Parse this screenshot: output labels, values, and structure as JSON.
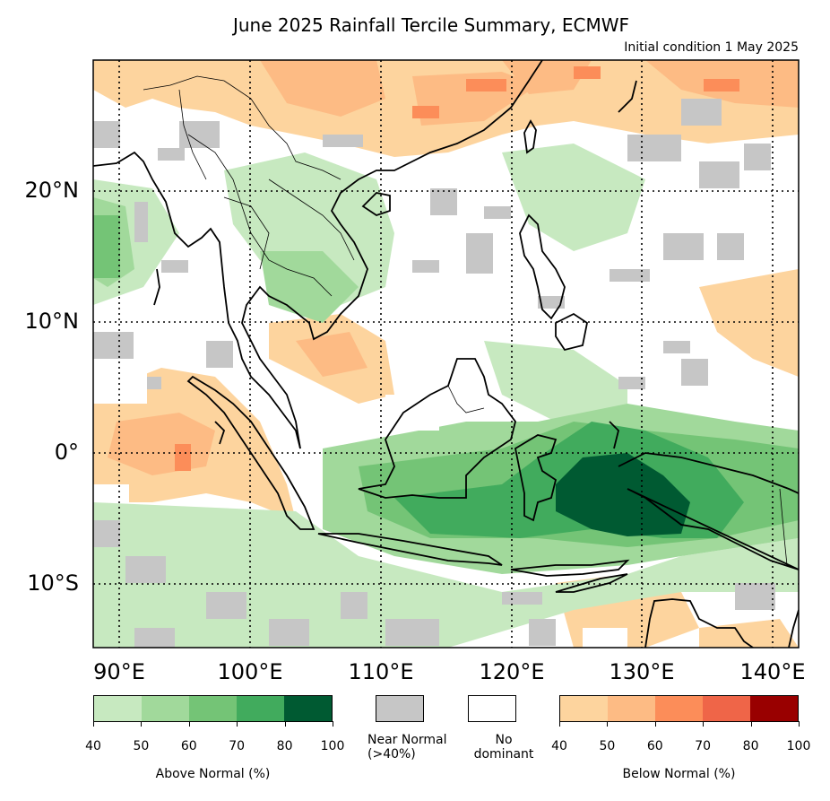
{
  "title": "June 2025 Rainfall Tercile Summary, ECMWF",
  "subtitle": "Initial condition 1 May 2025",
  "lat_labels": [
    "20°N",
    "10°N",
    "0°",
    "10°S"
  ],
  "lon_labels": [
    "90°E",
    "100°E",
    "110°E",
    "120°E",
    "130°E",
    "140°E"
  ],
  "legend": {
    "above_normal": {
      "caption": "Above Normal (%)",
      "ticks": [
        "40",
        "50",
        "60",
        "70",
        "80",
        "100"
      ],
      "colors": [
        "#c7e9c0",
        "#a1d99b",
        "#74c476",
        "#41ab5d",
        "#005a32"
      ]
    },
    "near_normal": {
      "caption_line1": "Near Normal",
      "caption_line2": "(>40%)",
      "color": "#c6c6c6"
    },
    "no_dominant": {
      "caption_line1": "No",
      "caption_line2": "dominant",
      "color": "#ffffff"
    },
    "below_normal": {
      "caption": "Below Normal (%)",
      "ticks": [
        "40",
        "50",
        "60",
        "70",
        "80",
        "100"
      ],
      "colors": [
        "#fdd49e",
        "#fdbb84",
        "#fc8d59",
        "#ef6548",
        "#990000"
      ]
    }
  },
  "map_extent": {
    "lon_min": 88,
    "lon_max": 142,
    "lat_min": -15,
    "lat_max": 30
  },
  "gridlines_lon": [
    90,
    100,
    110,
    120,
    130,
    140
  ],
  "gridlines_lat": [
    20,
    10,
    0,
    -10
  ]
}
